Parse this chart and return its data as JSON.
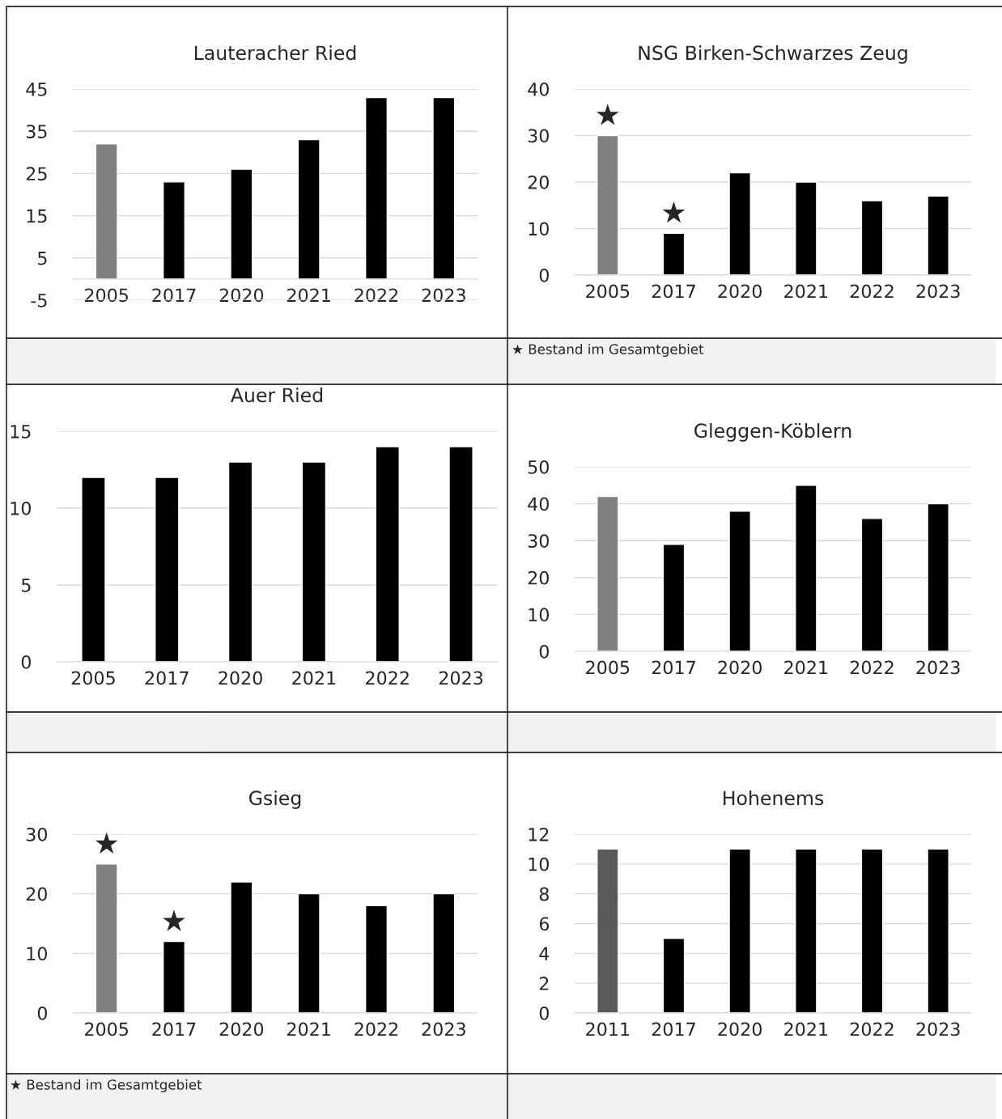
{
  "chart_data": [
    {
      "type": "bar",
      "title": "Lauteracher Ried",
      "categories": [
        "2005",
        "2017",
        "2020",
        "2021",
        "2022",
        "2023"
      ],
      "values": [
        32,
        23,
        26,
        33,
        43,
        43
      ],
      "colors": [
        "#808080",
        "#000000",
        "#000000",
        "#000000",
        "#000000",
        "#000000"
      ],
      "ylim": [
        -5,
        45
      ],
      "yticks": [
        -5,
        5,
        15,
        25,
        35,
        45
      ],
      "grid": "y"
    },
    {
      "type": "bar",
      "title": "NSG Birken-Schwarzes Zeug",
      "categories": [
        "2005",
        "2017",
        "2020",
        "2021",
        "2022",
        "2023"
      ],
      "values": [
        30,
        9,
        22,
        20,
        16,
        17
      ],
      "colors": [
        "#808080",
        "#000000",
        "#000000",
        "#000000",
        "#000000",
        "#000000"
      ],
      "ylim": [
        0,
        40
      ],
      "yticks": [
        0,
        10,
        20,
        30,
        40
      ],
      "grid": "y",
      "annotations": [
        {
          "text": "★",
          "x": "2005",
          "y": 30
        },
        {
          "text": "★",
          "x": "2017",
          "y": 9
        },
        "★ Bestand im Gesamtgebiet"
      ]
    },
    {
      "type": "bar",
      "title": "Auer Ried",
      "categories": [
        "2005",
        "2017",
        "2020",
        "2021",
        "2022",
        "2023"
      ],
      "values": [
        12,
        12,
        13,
        13,
        14,
        14
      ],
      "colors": [
        "#000000",
        "#000000",
        "#000000",
        "#000000",
        "#000000",
        "#000000"
      ],
      "ylim": [
        0,
        15
      ],
      "yticks": [
        0,
        5,
        10,
        15
      ],
      "grid": "y"
    },
    {
      "type": "bar",
      "title": "Gleggen-Köblern",
      "categories": [
        "2005",
        "2017",
        "2020",
        "2021",
        "2022",
        "2023"
      ],
      "values": [
        42,
        29,
        38,
        45,
        36,
        40
      ],
      "colors": [
        "#808080",
        "#000000",
        "#000000",
        "#000000",
        "#000000",
        "#000000"
      ],
      "ylim": [
        0,
        50
      ],
      "yticks": [
        0,
        10,
        20,
        30,
        40,
        50
      ],
      "grid": "y"
    },
    {
      "type": "bar",
      "title": "Gsieg",
      "categories": [
        "2005",
        "2017",
        "2020",
        "2021",
        "2022",
        "2023"
      ],
      "values": [
        25,
        12,
        22,
        20,
        18,
        20
      ],
      "colors": [
        "#808080",
        "#000000",
        "#000000",
        "#000000",
        "#000000",
        "#000000"
      ],
      "ylim": [
        0,
        30
      ],
      "yticks": [
        0,
        10,
        20,
        30
      ],
      "grid": "y",
      "annotations": [
        {
          "text": "★",
          "x": "2005",
          "y": 25
        },
        {
          "text": "★",
          "x": "2017",
          "y": 12
        },
        "★ Bestand im Gesamtgebiet"
      ]
    },
    {
      "type": "bar",
      "title": "Hohenems",
      "categories": [
        "2011",
        "2017",
        "2020",
        "2021",
        "2022",
        "2023"
      ],
      "values": [
        11,
        5,
        11,
        11,
        11,
        11
      ],
      "colors": [
        "#595959",
        "#000000",
        "#000000",
        "#000000",
        "#000000",
        "#000000"
      ],
      "ylim": [
        0,
        12
      ],
      "yticks": [
        0,
        2,
        4,
        6,
        8,
        10,
        12
      ],
      "grid": "y"
    }
  ]
}
